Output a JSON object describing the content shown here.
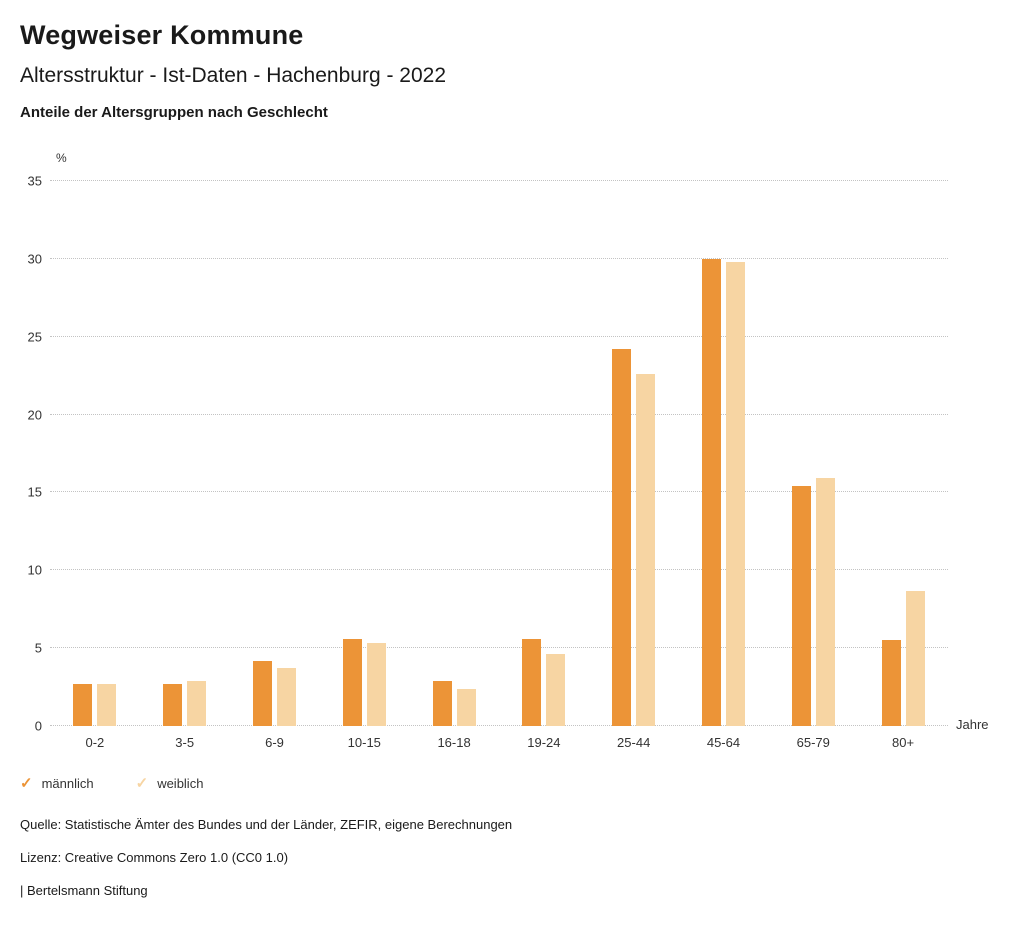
{
  "header": {
    "title": "Wegweiser Kommune",
    "subtitle": "Altersstruktur - Ist-Daten - Hachenburg - 2022",
    "chart_title": "Anteile der Altersgruppen nach Geschlecht"
  },
  "chart_data": {
    "type": "bar",
    "title": "Anteile der Altersgruppen nach Geschlecht",
    "unit_label": "%",
    "x_unit_label": "Jahre",
    "categories": [
      "0-2",
      "3-5",
      "6-9",
      "10-15",
      "16-18",
      "19-24",
      "25-44",
      "45-64",
      "65-79",
      "80+"
    ],
    "series": [
      {
        "name": "männlich",
        "color": "#ec9437",
        "values": [
          2.7,
          2.7,
          4.2,
          5.6,
          2.9,
          5.6,
          24.2,
          30.0,
          15.4,
          5.5
        ]
      },
      {
        "name": "weiblich",
        "color": "#f7d5a3",
        "values": [
          2.7,
          2.9,
          3.7,
          5.3,
          2.4,
          4.6,
          22.6,
          29.8,
          15.9,
          8.7
        ]
      }
    ],
    "ylim": [
      0,
      35
    ],
    "yticks": [
      0,
      5,
      10,
      15,
      20,
      25,
      30,
      35
    ],
    "grid": "dotted horizontal",
    "legend_position": "bottom-left"
  },
  "legend": {
    "items": [
      {
        "label": "männlich",
        "color": "#ec9437"
      },
      {
        "label": "weiblich",
        "color": "#f7d5a3"
      }
    ]
  },
  "footer": {
    "source": "Quelle: Statistische Ämter des Bundes und der Länder, ZEFIR, eigene Berechnungen",
    "license": "Lizenz: Creative Commons Zero 1.0 (CC0 1.0)",
    "attribution": "| Bertelsmann Stiftung"
  }
}
